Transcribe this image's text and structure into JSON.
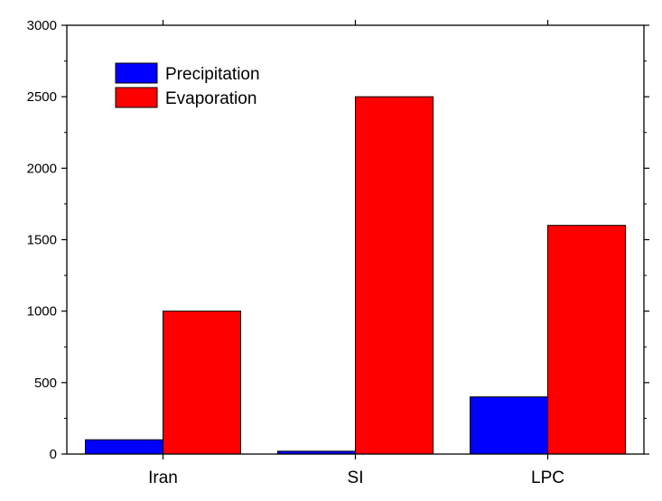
{
  "chart_data": {
    "type": "bar",
    "categories": [
      "Iran",
      "SI",
      "LPC"
    ],
    "series": [
      {
        "name": "Precipitation",
        "values": [
          100,
          20,
          400
        ],
        "color": "#0000ff"
      },
      {
        "name": "Evaporation",
        "values": [
          1000,
          2500,
          1600
        ],
        "color": "#ff0000"
      }
    ],
    "title": "",
    "xlabel": "",
    "ylabel": "",
    "ylim": [
      0,
      3000
    ],
    "yticks": [
      0,
      500,
      1000,
      1500,
      2000,
      2500,
      3000
    ],
    "y_minor_step": 250,
    "grid": false,
    "legend_position": "top-left"
  }
}
